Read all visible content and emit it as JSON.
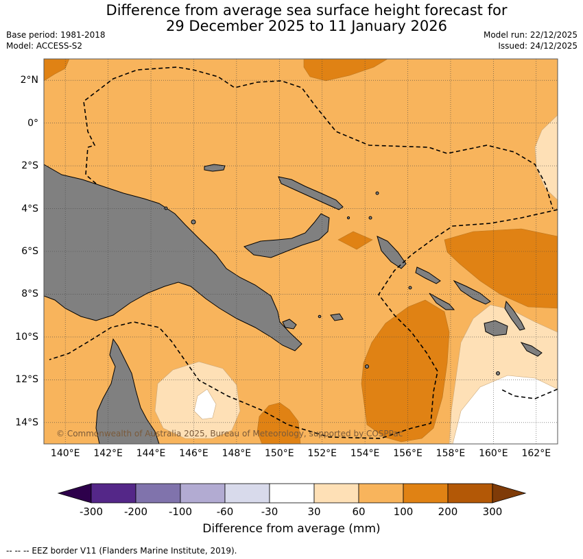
{
  "title": {
    "line1": "Difference from average sea surface height forecast for",
    "line2": "29 December 2025 to 11 January 2026"
  },
  "meta": {
    "base_period": "Base period: 1981-2018",
    "model": "Model: ACCESS-S2",
    "model_run": "Model run: 22/12/2025",
    "issued": "Issued: 24/12/2025"
  },
  "map": {
    "lon_range": [
      139,
      163
    ],
    "lat_range": [
      -15,
      3
    ],
    "lat_labels": [
      "2°N",
      "0°",
      "2°S",
      "4°S",
      "6°S",
      "8°S",
      "10°S",
      "12°S",
      "14°S"
    ],
    "lon_labels": [
      "140°E",
      "142°E",
      "144°E",
      "146°E",
      "148°E",
      "150°E",
      "152°E",
      "154°E",
      "156°E",
      "158°E",
      "160°E",
      "162°E"
    ],
    "copyright": "© Commonwealth of Australia 2025, Bureau of Meteorology, supported by COSPPac",
    "land_color": "#808080",
    "field_colors": {
      "60-100": "#f8b45c",
      "100-200": "#e08214",
      "30-60": "#fee0b6",
      "-30-30": "#ffffff"
    }
  },
  "colorbar": {
    "title": "Difference from average (mm)",
    "labels": [
      "-300",
      "-200",
      "-100",
      "-60",
      "-30",
      "30",
      "60",
      "100",
      "200",
      "300"
    ],
    "colors": [
      "#2d004b",
      "#542788",
      "#8073ac",
      "#b2abd2",
      "#d8daeb",
      "#ffffff",
      "#fee0b6",
      "#f8b45c",
      "#e08214",
      "#b35806",
      "#7f3b08"
    ]
  },
  "footer": "--  --  -- EEZ border V11 (Flanders Marine Institute, 2019)."
}
